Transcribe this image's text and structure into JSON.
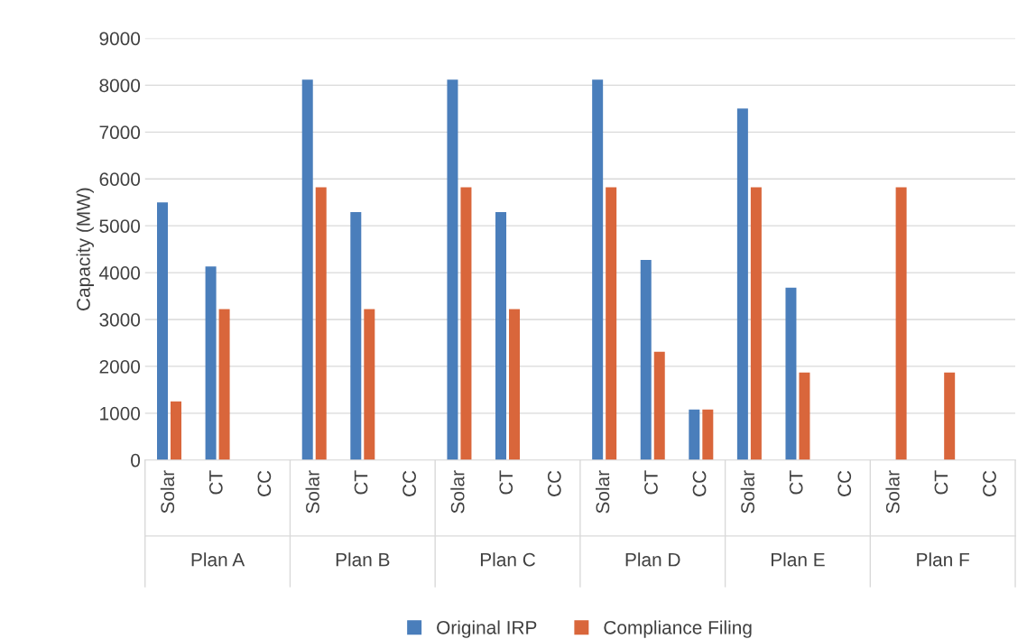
{
  "chart_data": {
    "type": "bar",
    "ylabel": "Capacity (MW)",
    "categories": [
      "Solar",
      "CT",
      "CC",
      "Solar",
      "CT",
      "CC",
      "Solar",
      "CT",
      "CC",
      "Solar",
      "CT",
      "CC",
      "Solar",
      "CT",
      "CC",
      "Solar",
      "CT",
      "CC"
    ],
    "annotations": [
      "Plan A",
      "Plan B",
      "Plan C",
      "Plan D",
      "Plan E",
      "Plan F"
    ],
    "series": [
      {
        "name": "Original IRP",
        "color": "#4a7ebb",
        "values": [
          5500,
          4130,
          0,
          8120,
          5290,
          0,
          8120,
          5290,
          0,
          8120,
          4270,
          1080,
          7500,
          3680,
          0,
          0,
          0,
          0
        ]
      },
      {
        "name": "Compliance Filing",
        "color": "#d9663b",
        "values": [
          1250,
          3220,
          0,
          5820,
          3220,
          0,
          5820,
          3220,
          0,
          5820,
          2310,
          1080,
          5820,
          1870,
          0,
          5820,
          1870,
          0
        ]
      }
    ],
    "ylim": [
      0,
      9000
    ],
    "yticks": [
      0,
      1000,
      2000,
      3000,
      4000,
      5000,
      6000,
      7000,
      8000,
      9000
    ],
    "grid": "y",
    "legend": "bottom"
  }
}
